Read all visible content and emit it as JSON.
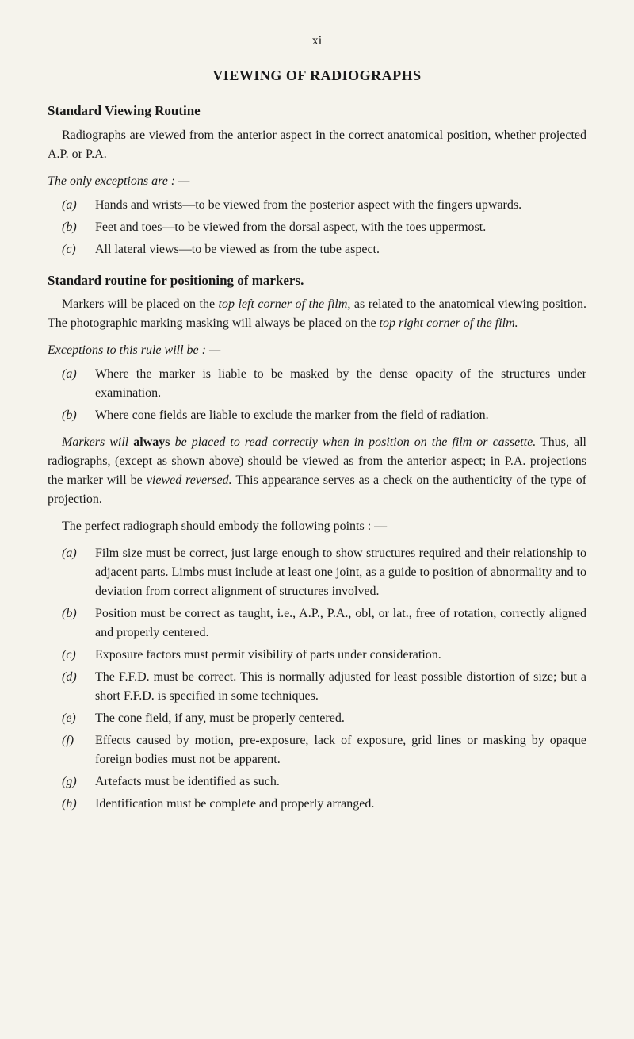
{
  "page_number": "xi",
  "main_heading": "VIEWING OF RADIOGRAPHS",
  "section1": {
    "heading": "Standard Viewing Routine",
    "para1_a": "Radiographs are viewed from the anterior aspect in the ",
    "para1_b": "correct",
    "para1_c": " anatomical position, whether projected A.P. or P.A.",
    "exceptions_lead": "The only exceptions are : —",
    "items": [
      {
        "label": "(a)",
        "pre": "Hands and wrists—to be viewed from the posterior aspect with the fingers upwards."
      },
      {
        "label": "(b)",
        "pre": "Feet and toes—to be viewed from the dorsal aspect, with the toes uppermost."
      },
      {
        "label": "(c)",
        "pre": "All lateral views—to be viewed as from the tube aspect."
      }
    ]
  },
  "section2": {
    "heading": "Standard routine for positioning of markers.",
    "para_a": "Markers will be placed on the ",
    "para_b": "top left corner of the film,",
    "para_c": " as related to the anatomical viewing position. The photographic marking masking will always be placed on the ",
    "para_d": "top right corner of the film.",
    "exceptions_lead": "Exceptions to this rule will be : —",
    "items": [
      {
        "label": "(a)",
        "text": "Where the marker is liable to be masked by the dense opacity of the structures under examination."
      },
      {
        "label": "(b)",
        "text": "Where cone fields are liable to exclude the marker from the field of radiation."
      }
    ],
    "markers_a": "Markers will ",
    "markers_b": "always",
    "markers_c": " be placed to read correctly when in position on the film or cassette.",
    "markers_d": " Thus, all radiographs, (except as shown above) should be viewed as from the anterior aspect; in P.A. projections the marker will be ",
    "markers_e": "viewed reversed.",
    "markers_f": " This appearance serves as a check on the authenticity of the type of projection."
  },
  "section3": {
    "lead": "The perfect radiograph should embody the following points : —",
    "items": [
      {
        "label": "(a)",
        "text": "Film size must be correct, just large enough to show structures required and their relationship to adjacent parts. Limbs must include at least one joint, as a guide to position of abnormality and to deviation from correct alignment of structures involved."
      },
      {
        "label": "(b)",
        "text": "Position must be correct as taught, i.e., A.P., P.A., obl, or lat., free of rotation, correctly aligned and properly centered."
      },
      {
        "label": "(c)",
        "text": "Exposure factors must permit visibility of parts under considera­tion."
      },
      {
        "label": "(d)",
        "text": "The F.F.D. must be correct. This is normally adjusted for least possible distortion of size; but a short F.F.D. is specified in some techniques."
      },
      {
        "label": "(e)",
        "text": "The cone field, if any, must be properly centered."
      },
      {
        "label": "(f)",
        "text": "Effects caused by motion, pre-exposure, lack of exposure, grid lines or masking by opaque foreign bodies must not be apparent."
      },
      {
        "label": "(g)",
        "text": "Artefacts must be identified as such."
      },
      {
        "label": "(h)",
        "text": "Identification must be complete and properly arranged."
      }
    ]
  }
}
